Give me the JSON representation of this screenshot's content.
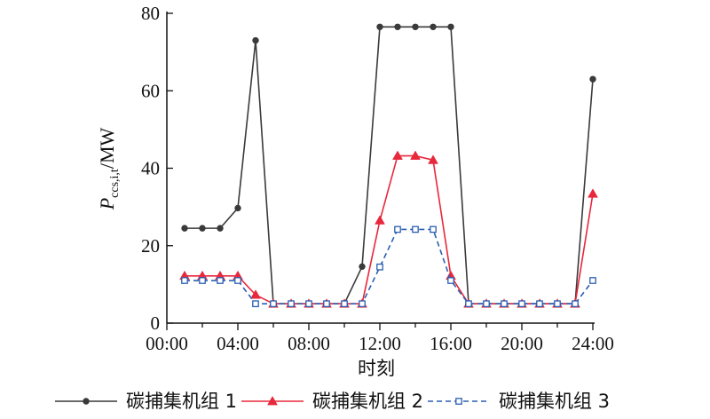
{
  "chart_data": {
    "type": "line",
    "xlabel": "时刻",
    "ylabel_main": "P",
    "ylabel_sub": "ccs,i,t",
    "ylabel_unit": "/MW",
    "x": [
      1,
      2,
      3,
      4,
      5,
      6,
      7,
      8,
      9,
      10,
      11,
      12,
      13,
      14,
      15,
      16,
      17,
      18,
      19,
      20,
      21,
      22,
      23,
      24
    ],
    "xlim": [
      0,
      24
    ],
    "ylim": [
      0,
      80
    ],
    "xticks": [
      0,
      4,
      8,
      12,
      16,
      20,
      24
    ],
    "xtick_labels": [
      "00:00",
      "04:00",
      "08:00",
      "12:00",
      "16:00",
      "20:00",
      "24:00"
    ],
    "yticks": [
      0,
      20,
      40,
      60,
      80
    ],
    "ytick_labels": [
      "0",
      "20",
      "40",
      "60",
      "80"
    ],
    "legend_position": "bottom",
    "series": [
      {
        "name": "碳捕集机组 1",
        "color": "#3a3a3a",
        "marker": "circle",
        "dash": "solid",
        "values": [
          24.5,
          24.5,
          24.5,
          29.7,
          73,
          5,
          5,
          5,
          5,
          5,
          14.6,
          76.5,
          76.5,
          76.5,
          76.5,
          76.5,
          5,
          5,
          5,
          5,
          5,
          5,
          5,
          63
        ]
      },
      {
        "name": "碳捕集机组 2",
        "color": "#e8283c",
        "marker": "triangle",
        "dash": "solid",
        "values": [
          12.2,
          12.2,
          12.2,
          12.2,
          7.3,
          5,
          5,
          5,
          5,
          5,
          5,
          26.5,
          43.2,
          43.2,
          42.1,
          12.2,
          5,
          5,
          5,
          5,
          5,
          5,
          5,
          33.4
        ]
      },
      {
        "name": "碳捕集机组 3",
        "color": "#2a5fb0",
        "marker": "square",
        "dash": "dashed",
        "values": [
          11,
          11,
          11,
          11,
          5,
          5,
          5,
          5,
          5,
          5,
          5,
          14.5,
          24.2,
          24.2,
          24.2,
          11,
          5,
          5,
          5,
          5,
          5,
          5,
          5,
          11
        ]
      }
    ]
  }
}
